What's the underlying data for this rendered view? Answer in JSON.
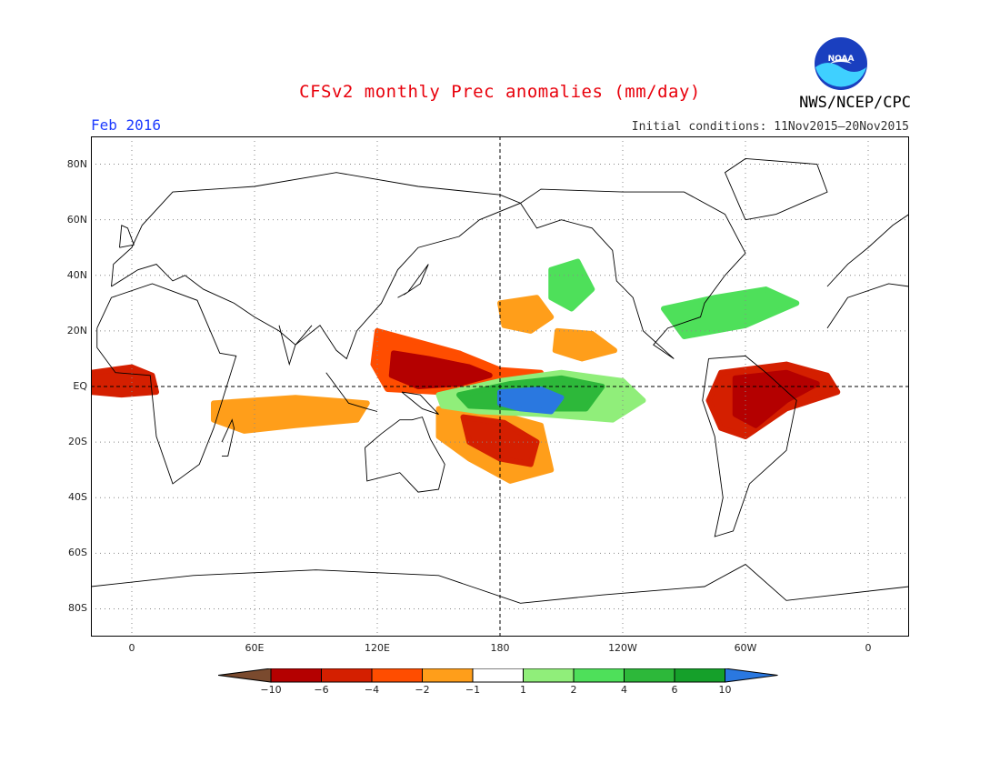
{
  "header": {
    "title": "CFSv2 monthly Prec anomalies (mm/day)",
    "month": "Feb 2016",
    "initial_conditions": "Initial conditions: 11Nov2015–20Nov2015",
    "org": "NWS/NCEP/CPC",
    "logo_text": "NOAA"
  },
  "axes": {
    "lat_labels": [
      "80N",
      "60N",
      "40N",
      "20N",
      "EQ",
      "20S",
      "40S",
      "60S",
      "80S"
    ],
    "lat_values": [
      80,
      60,
      40,
      20,
      0,
      -20,
      -40,
      -60,
      -80
    ],
    "lon_labels": [
      "0",
      "60E",
      "120E",
      "180",
      "120W",
      "60W",
      "0"
    ],
    "lon_values": [
      0,
      60,
      120,
      180,
      240,
      300,
      360
    ],
    "lon_range": [
      -20,
      380
    ],
    "lat_range": [
      -90,
      90
    ]
  },
  "colorbar": {
    "labels": [
      "−10",
      "−6",
      "−4",
      "−2",
      "−1",
      "1",
      "2",
      "4",
      "6",
      "10"
    ],
    "colors": [
      "#7a4a2e",
      "#b40000",
      "#d41f00",
      "#ff4d00",
      "#ff9e1a",
      "#ffffff",
      "#90ee7a",
      "#4ee05a",
      "#2db83a",
      "#15a02a",
      "#2a78e0"
    ]
  },
  "colors": {
    "title": "#e8000b",
    "month": "#1e3cff"
  },
  "anomalies": [
    {
      "name": "wpac-dry-band",
      "fill": "#ff4d00",
      "pts": [
        [
          120,
          20
        ],
        [
          135,
          17
        ],
        [
          160,
          12
        ],
        [
          180,
          6
        ],
        [
          200,
          5
        ],
        [
          175,
          1
        ],
        [
          150,
          -2
        ],
        [
          125,
          -1
        ],
        [
          118,
          8
        ]
      ]
    },
    {
      "name": "wpac-dry-core",
      "fill": "#b40000",
      "pts": [
        [
          128,
          12
        ],
        [
          145,
          10
        ],
        [
          165,
          7
        ],
        [
          175,
          4
        ],
        [
          160,
          1
        ],
        [
          140,
          0
        ],
        [
          127,
          4
        ]
      ]
    },
    {
      "name": "spcz-dry",
      "fill": "#ff9e1a",
      "pts": [
        [
          150,
          -8
        ],
        [
          175,
          -9
        ],
        [
          200,
          -14
        ],
        [
          205,
          -30
        ],
        [
          185,
          -34
        ],
        [
          165,
          -26
        ],
        [
          150,
          -18
        ]
      ]
    },
    {
      "name": "spcz-dry-core",
      "fill": "#d41f00",
      "pts": [
        [
          162,
          -11
        ],
        [
          182,
          -13
        ],
        [
          198,
          -20
        ],
        [
          195,
          -28
        ],
        [
          180,
          -26
        ],
        [
          165,
          -20
        ]
      ]
    },
    {
      "name": "epac-wet-outer",
      "fill": "#90ee7a",
      "pts": [
        [
          150,
          -3
        ],
        [
          180,
          2
        ],
        [
          210,
          5
        ],
        [
          240,
          2
        ],
        [
          250,
          -5
        ],
        [
          235,
          -12
        ],
        [
          200,
          -10
        ],
        [
          170,
          -9
        ],
        [
          152,
          -7
        ]
      ]
    },
    {
      "name": "epac-wet-mid",
      "fill": "#2db83a",
      "pts": [
        [
          160,
          -3
        ],
        [
          185,
          1
        ],
        [
          210,
          3
        ],
        [
          230,
          0
        ],
        [
          222,
          -8
        ],
        [
          195,
          -8
        ],
        [
          165,
          -7
        ]
      ]
    },
    {
      "name": "epac-wet-core",
      "fill": "#2a78e0",
      "pts": [
        [
          180,
          -2
        ],
        [
          200,
          -1
        ],
        [
          210,
          -4
        ],
        [
          205,
          -9
        ],
        [
          190,
          -8
        ],
        [
          180,
          -6
        ]
      ]
    },
    {
      "name": "npac-dry",
      "fill": "#ff9e1a",
      "pts": [
        [
          180,
          30
        ],
        [
          198,
          32
        ],
        [
          205,
          25
        ],
        [
          195,
          20
        ],
        [
          182,
          22
        ]
      ]
    },
    {
      "name": "npac-dry2",
      "fill": "#ff9e1a",
      "pts": [
        [
          208,
          20
        ],
        [
          225,
          19
        ],
        [
          236,
          13
        ],
        [
          220,
          10
        ],
        [
          207,
          13
        ]
      ]
    },
    {
      "name": "npac-wet",
      "fill": "#4ee05a",
      "pts": [
        [
          205,
          42
        ],
        [
          218,
          45
        ],
        [
          225,
          35
        ],
        [
          215,
          28
        ],
        [
          205,
          32
        ]
      ]
    },
    {
      "name": "amazon-dry",
      "fill": "#d41f00",
      "pts": [
        [
          288,
          5
        ],
        [
          320,
          8
        ],
        [
          340,
          4
        ],
        [
          345,
          -2
        ],
        [
          320,
          -8
        ],
        [
          300,
          -18
        ],
        [
          288,
          -15
        ],
        [
          282,
          -5
        ]
      ]
    },
    {
      "name": "amazon-dry-core",
      "fill": "#b40000",
      "pts": [
        [
          295,
          3
        ],
        [
          320,
          5
        ],
        [
          335,
          1
        ],
        [
          320,
          -5
        ],
        [
          305,
          -14
        ],
        [
          295,
          -10
        ]
      ]
    },
    {
      "name": "africa-dry",
      "fill": "#d41f00",
      "pts": [
        [
          -20,
          5
        ],
        [
          0,
          7
        ],
        [
          10,
          4
        ],
        [
          12,
          -2
        ],
        [
          -5,
          -3
        ],
        [
          -20,
          -2
        ]
      ]
    },
    {
      "name": "indian-dry",
      "fill": "#ff9e1a",
      "pts": [
        [
          40,
          -6
        ],
        [
          80,
          -4
        ],
        [
          115,
          -6
        ],
        [
          110,
          -12
        ],
        [
          80,
          -14
        ],
        [
          55,
          -16
        ],
        [
          40,
          -12
        ]
      ]
    },
    {
      "name": "caribbean-wet",
      "fill": "#4ee05a",
      "pts": [
        [
          260,
          28
        ],
        [
          285,
          32
        ],
        [
          310,
          35
        ],
        [
          325,
          30
        ],
        [
          300,
          22
        ],
        [
          270,
          18
        ]
      ]
    }
  ]
}
